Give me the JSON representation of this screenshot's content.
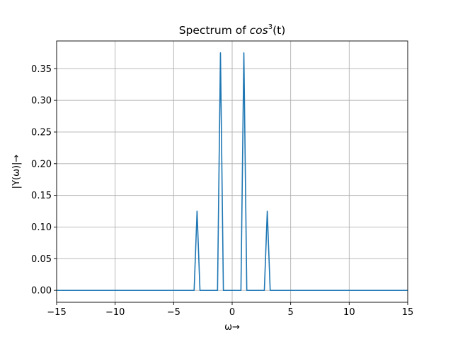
{
  "chart_data": {
    "type": "line",
    "title": "Spectrum of cos³(t)",
    "title_parts": {
      "main": "Spectrum of ",
      "fn": "cos",
      "exp": "3",
      "arg": "(t)"
    },
    "xlabel": "ω→",
    "ylabel": "|Y(ω)|→",
    "xlim": [
      -15,
      15
    ],
    "ylim": [
      -0.0188,
      0.3938
    ],
    "x_ticks": [
      -15,
      -10,
      -5,
      0,
      5,
      10,
      15
    ],
    "x_tick_labels": [
      "−15",
      "−10",
      "−5",
      "0",
      "5",
      "10",
      "15"
    ],
    "y_ticks": [
      0.0,
      0.05,
      0.1,
      0.15,
      0.2,
      0.25,
      0.3,
      0.35
    ],
    "y_tick_labels": [
      "0.00",
      "0.05",
      "0.10",
      "0.15",
      "0.20",
      "0.25",
      "0.30",
      "0.35"
    ],
    "grid": true,
    "series": [
      {
        "color": "#1f77b4",
        "x": [
          -15,
          -3.25,
          -3.0,
          -2.75,
          -1.25,
          -1.0,
          -0.75,
          0.75,
          1.0,
          1.25,
          2.75,
          3.0,
          3.25,
          15
        ],
        "y": [
          0,
          0,
          0.125,
          0,
          0,
          0.375,
          0,
          0,
          0.375,
          0,
          0,
          0.125,
          0,
          0
        ]
      }
    ]
  }
}
